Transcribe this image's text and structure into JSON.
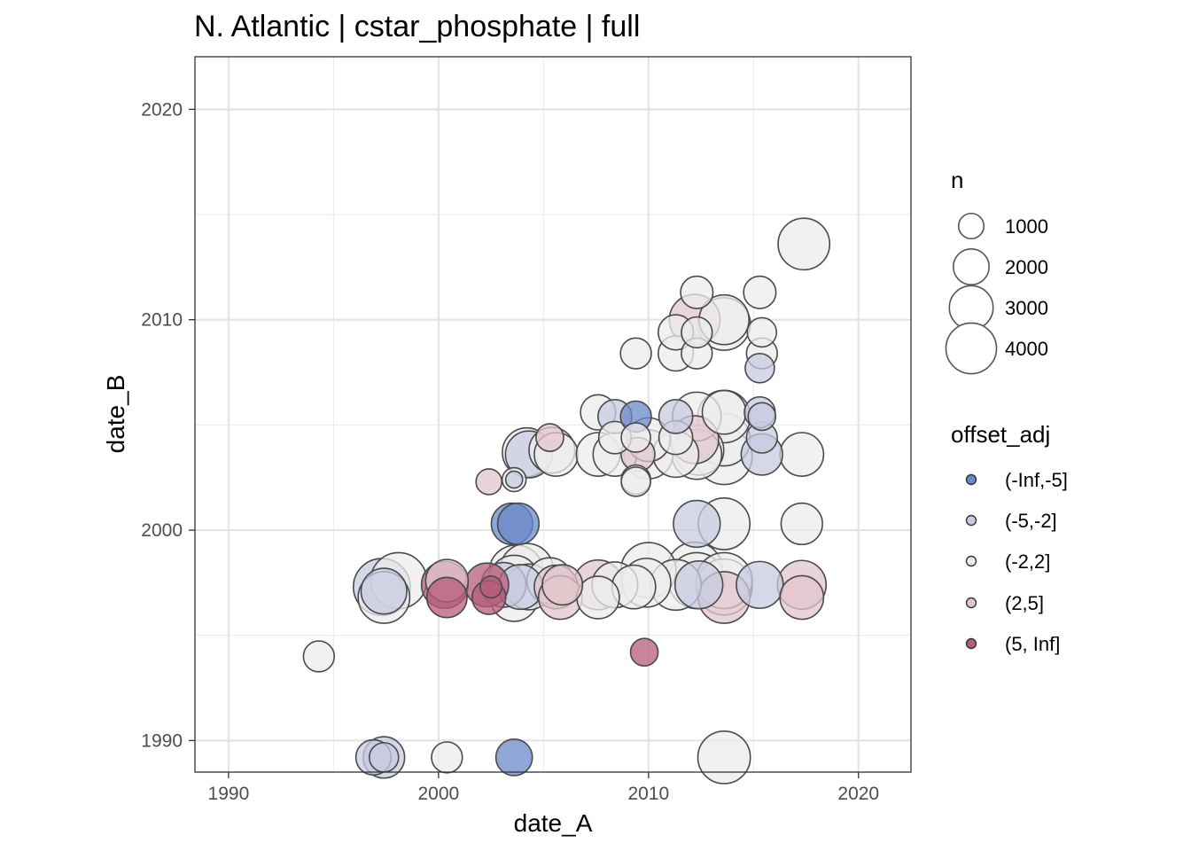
{
  "chart_data": {
    "type": "scatter",
    "title": "N. Atlantic | cstar_phosphate | full",
    "xlabel": "date_A",
    "ylabel": "date_B",
    "xlim": [
      1988.4,
      2022.5
    ],
    "ylim": [
      1988.5,
      2022.5
    ],
    "x_ticks": [
      1990,
      2000,
      2010,
      2020
    ],
    "y_ticks": [
      1990,
      2000,
      2010,
      2020
    ],
    "x_tick_labels": [
      "1990",
      "2000",
      "2010",
      "2020"
    ],
    "y_tick_labels": [
      "1990",
      "2000",
      "2010",
      "2020"
    ],
    "grid": true,
    "legend_position": "right",
    "size_legend": {
      "title": "n",
      "entries": [
        {
          "label": "1000",
          "value": 1000
        },
        {
          "label": "2000",
          "value": 2000
        },
        {
          "label": "3000",
          "value": 3000
        },
        {
          "label": "4000",
          "value": 4000
        }
      ]
    },
    "color_legend": {
      "title": "offset_adj",
      "entries": [
        {
          "label": "(-Inf,-5]",
          "key": "vneg",
          "color": "#6b88c9"
        },
        {
          "label": "(-5,-2]",
          "key": "neg",
          "color": "#c7cbe0"
        },
        {
          "label": "(-2,2]",
          "key": "zero",
          "color": "#ececec"
        },
        {
          "label": "(2,5]",
          "key": "pos",
          "color": "#e2c6cc"
        },
        {
          "label": "(5, Inf]",
          "key": "vpos",
          "color": "#b65c79"
        }
      ]
    },
    "points": [
      {
        "x": 1994.3,
        "y": 1994.0,
        "n": 1000,
        "c": "zero"
      },
      {
        "x": 1996.9,
        "y": 1989.2,
        "n": 1300,
        "c": "neg"
      },
      {
        "x": 1997.4,
        "y": 1989.2,
        "n": 1800,
        "c": "neg"
      },
      {
        "x": 1997.4,
        "y": 1989.2,
        "n": 900,
        "c": "neg"
      },
      {
        "x": 2000.4,
        "y": 1989.2,
        "n": 1000,
        "c": "zero"
      },
      {
        "x": 2003.6,
        "y": 1989.2,
        "n": 1400,
        "c": "vneg"
      },
      {
        "x": 2013.6,
        "y": 1989.2,
        "n": 2900,
        "c": "zero"
      },
      {
        "x": 2009.8,
        "y": 1994.2,
        "n": 800,
        "c": "vpos"
      },
      {
        "x": 1997.3,
        "y": 1997.3,
        "n": 3400,
        "c": "neg"
      },
      {
        "x": 1997.4,
        "y": 1996.8,
        "n": 2800,
        "c": "zero"
      },
      {
        "x": 1997.4,
        "y": 1997.1,
        "n": 2200,
        "c": "neg"
      },
      {
        "x": 1998.1,
        "y": 1997.6,
        "n": 3300,
        "c": "zero"
      },
      {
        "x": 2000.3,
        "y": 1997.4,
        "n": 2300,
        "c": "vpos"
      },
      {
        "x": 2000.4,
        "y": 1996.8,
        "n": 1700,
        "c": "vpos"
      },
      {
        "x": 2000.4,
        "y": 1997.6,
        "n": 1900,
        "c": "pos"
      },
      {
        "x": 2002.3,
        "y": 1997.4,
        "n": 2000,
        "c": "vpos"
      },
      {
        "x": 2002.4,
        "y": 1996.8,
        "n": 1200,
        "c": "vpos"
      },
      {
        "x": 2002.5,
        "y": 1997.3,
        "n": 500,
        "c": "vpos"
      },
      {
        "x": 2003.1,
        "y": 1997.4,
        "n": 2100,
        "c": "neg"
      },
      {
        "x": 2003.6,
        "y": 1996.8,
        "n": 2400,
        "c": "zero"
      },
      {
        "x": 2003.6,
        "y": 1997.6,
        "n": 2700,
        "c": "zero"
      },
      {
        "x": 2003.7,
        "y": 1998.0,
        "n": 3100,
        "c": "zero"
      },
      {
        "x": 2003.9,
        "y": 1997.3,
        "n": 2100,
        "c": "neg"
      },
      {
        "x": 2004.3,
        "y": 1997.3,
        "n": 2200,
        "c": "zero"
      },
      {
        "x": 2004.2,
        "y": 1998.1,
        "n": 3000,
        "c": "zero"
      },
      {
        "x": 2005.3,
        "y": 1997.6,
        "n": 2200,
        "c": "zero"
      },
      {
        "x": 2005.6,
        "y": 1997.3,
        "n": 2000,
        "c": "pos"
      },
      {
        "x": 2005.8,
        "y": 1996.8,
        "n": 2000,
        "c": "pos"
      },
      {
        "x": 2005.9,
        "y": 1997.4,
        "n": 1700,
        "c": "pos"
      },
      {
        "x": 2007.6,
        "y": 1996.8,
        "n": 1900,
        "c": "zero"
      },
      {
        "x": 2007.6,
        "y": 1997.4,
        "n": 2600,
        "c": "pos"
      },
      {
        "x": 2008.4,
        "y": 1997.4,
        "n": 2200,
        "c": "zero"
      },
      {
        "x": 2009.3,
        "y": 1997.3,
        "n": 2000,
        "c": "zero"
      },
      {
        "x": 2009.9,
        "y": 1997.5,
        "n": 2500,
        "c": "zero"
      },
      {
        "x": 2010.0,
        "y": 1998.1,
        "n": 3200,
        "c": "zero"
      },
      {
        "x": 2011.3,
        "y": 1997.4,
        "n": 2700,
        "c": "zero"
      },
      {
        "x": 2012.2,
        "y": 1998.1,
        "n": 3300,
        "c": "zero"
      },
      {
        "x": 2012.3,
        "y": 1997.6,
        "n": 3300,
        "c": "zero"
      },
      {
        "x": 2012.4,
        "y": 1997.4,
        "n": 2400,
        "c": "neg"
      },
      {
        "x": 2013.6,
        "y": 1996.8,
        "n": 2800,
        "c": "pos"
      },
      {
        "x": 2013.6,
        "y": 1997.3,
        "n": 3300,
        "c": "zero"
      },
      {
        "x": 2013.6,
        "y": 1997.6,
        "n": 3300,
        "c": "zero"
      },
      {
        "x": 2015.3,
        "y": 1997.4,
        "n": 2300,
        "c": "neg"
      },
      {
        "x": 2017.3,
        "y": 1997.4,
        "n": 2500,
        "c": "pos"
      },
      {
        "x": 2017.3,
        "y": 1996.8,
        "n": 2000,
        "c": "pos"
      },
      {
        "x": 2003.5,
        "y": 2000.3,
        "n": 1800,
        "c": "vneg"
      },
      {
        "x": 2003.8,
        "y": 2000.3,
        "n": 1800,
        "c": "vneg"
      },
      {
        "x": 2012.3,
        "y": 2000.3,
        "n": 2300,
        "c": "neg"
      },
      {
        "x": 2013.6,
        "y": 2000.3,
        "n": 2800,
        "c": "zero"
      },
      {
        "x": 2017.3,
        "y": 2000.3,
        "n": 1800,
        "c": "zero"
      },
      {
        "x": 2002.4,
        "y": 2002.3,
        "n": 700,
        "c": "pos"
      },
      {
        "x": 2003.6,
        "y": 2002.4,
        "n": 600,
        "c": "zero"
      },
      {
        "x": 2003.6,
        "y": 2002.4,
        "n": 300,
        "c": "neg"
      },
      {
        "x": 2004.2,
        "y": 2003.7,
        "n": 2500,
        "c": "zero"
      },
      {
        "x": 2004.3,
        "y": 2003.6,
        "n": 2300,
        "c": "neg"
      },
      {
        "x": 2005.4,
        "y": 2003.8,
        "n": 2200,
        "c": "zero"
      },
      {
        "x": 2005.6,
        "y": 2003.6,
        "n": 2000,
        "c": "zero"
      },
      {
        "x": 2005.3,
        "y": 2004.4,
        "n": 800,
        "c": "pos"
      },
      {
        "x": 2007.6,
        "y": 2003.6,
        "n": 2000,
        "c": "zero"
      },
      {
        "x": 2008.4,
        "y": 2003.6,
        "n": 2000,
        "c": "zero"
      },
      {
        "x": 2008.4,
        "y": 2004.4,
        "n": 1100,
        "c": "zero"
      },
      {
        "x": 2009.4,
        "y": 2004.4,
        "n": 900,
        "c": "zero"
      },
      {
        "x": 2009.5,
        "y": 2003.6,
        "n": 1200,
        "c": "pos"
      },
      {
        "x": 2009.4,
        "y": 2002.4,
        "n": 900,
        "c": "zero"
      },
      {
        "x": 2009.4,
        "y": 2002.3,
        "n": 900,
        "c": "zero"
      },
      {
        "x": 2010.0,
        "y": 2004.3,
        "n": 2000,
        "c": "zero"
      },
      {
        "x": 2010.0,
        "y": 2003.6,
        "n": 2500,
        "c": "zero"
      },
      {
        "x": 2011.3,
        "y": 2003.6,
        "n": 2200,
        "c": "zero"
      },
      {
        "x": 2011.3,
        "y": 2004.4,
        "n": 1200,
        "c": "zero"
      },
      {
        "x": 2012.2,
        "y": 2004.3,
        "n": 2400,
        "c": "pos"
      },
      {
        "x": 2012.4,
        "y": 2003.8,
        "n": 2600,
        "c": "zero"
      },
      {
        "x": 2012.3,
        "y": 2003.6,
        "n": 2600,
        "c": "zero"
      },
      {
        "x": 2013.6,
        "y": 2004.3,
        "n": 2900,
        "c": "zero"
      },
      {
        "x": 2013.6,
        "y": 2003.5,
        "n": 3300,
        "c": "zero"
      },
      {
        "x": 2015.4,
        "y": 2003.6,
        "n": 1800,
        "c": "neg"
      },
      {
        "x": 2015.4,
        "y": 2004.4,
        "n": 1000,
        "c": "neg"
      },
      {
        "x": 2017.3,
        "y": 2003.6,
        "n": 2000,
        "c": "zero"
      },
      {
        "x": 2007.6,
        "y": 2005.6,
        "n": 1300,
        "c": "zero"
      },
      {
        "x": 2008.4,
        "y": 2005.4,
        "n": 1200,
        "c": "neg"
      },
      {
        "x": 2009.4,
        "y": 2005.4,
        "n": 1000,
        "c": "vneg"
      },
      {
        "x": 2011.3,
        "y": 2005.4,
        "n": 1200,
        "c": "neg"
      },
      {
        "x": 2012.3,
        "y": 2005.4,
        "n": 2500,
        "c": "zero"
      },
      {
        "x": 2013.6,
        "y": 2005.6,
        "n": 2000,
        "c": "zero"
      },
      {
        "x": 2013.6,
        "y": 2005.4,
        "n": 2900,
        "c": "zero"
      },
      {
        "x": 2015.3,
        "y": 2005.6,
        "n": 1000,
        "c": "neg"
      },
      {
        "x": 2015.4,
        "y": 2005.4,
        "n": 800,
        "c": "neg"
      },
      {
        "x": 2009.4,
        "y": 2008.4,
        "n": 1000,
        "c": "zero"
      },
      {
        "x": 2011.3,
        "y": 2008.4,
        "n": 1300,
        "c": "zero"
      },
      {
        "x": 2012.3,
        "y": 2008.4,
        "n": 1000,
        "c": "zero"
      },
      {
        "x": 2015.4,
        "y": 2008.4,
        "n": 1000,
        "c": "zero"
      },
      {
        "x": 2015.3,
        "y": 2007.7,
        "n": 900,
        "c": "neg"
      },
      {
        "x": 2011.3,
        "y": 2009.4,
        "n": 1300,
        "c": "zero"
      },
      {
        "x": 2012.3,
        "y": 2009.4,
        "n": 1000,
        "c": "zero"
      },
      {
        "x": 2015.4,
        "y": 2009.4,
        "n": 900,
        "c": "zero"
      },
      {
        "x": 2012.2,
        "y": 2010.0,
        "n": 2700,
        "c": "pos"
      },
      {
        "x": 2013.6,
        "y": 2009.8,
        "n": 2900,
        "c": "zero"
      },
      {
        "x": 2013.6,
        "y": 2010.0,
        "n": 2600,
        "c": "zero"
      },
      {
        "x": 2012.3,
        "y": 2011.3,
        "n": 1100,
        "c": "zero"
      },
      {
        "x": 2015.3,
        "y": 2011.3,
        "n": 1100,
        "c": "zero"
      },
      {
        "x": 2017.4,
        "y": 2013.6,
        "n": 2800,
        "c": "zero"
      }
    ]
  }
}
